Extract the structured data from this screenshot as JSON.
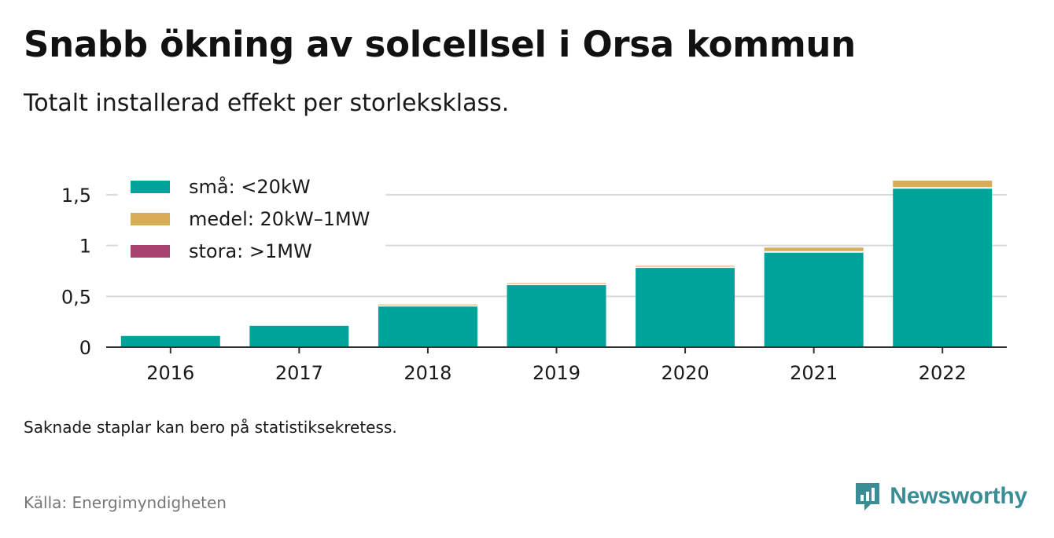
{
  "header": {
    "title": "Snabb ökning av solcellsel i Orsa kommun",
    "subtitle": "Totalt installerad effekt per storleksklass."
  },
  "footer": {
    "note": "Saknade staplar kan bero på statistiksekretess.",
    "source": "Källa: Energimyndigheten",
    "brand": "Newsworthy"
  },
  "colors": {
    "small": "#00a39a",
    "medium": "#d9ac58",
    "large": "#a8426f",
    "brand": "#3a8d94",
    "axis": "#333333",
    "grid": "#d9d9d9"
  },
  "chart_data": {
    "type": "bar",
    "stacked": true,
    "categories": [
      "2016",
      "2017",
      "2018",
      "2019",
      "2020",
      "2021",
      "2022"
    ],
    "series": [
      {
        "name": "små: <20kW",
        "values": [
          0.11,
          0.21,
          0.4,
          0.61,
          0.78,
          0.93,
          1.56
        ]
      },
      {
        "name": "medel: 20kW–1MW",
        "values": [
          0.0,
          0.0,
          0.02,
          0.02,
          0.02,
          0.05,
          0.08
        ]
      },
      {
        "name": "stora: >1MW",
        "values": [
          0,
          0,
          0,
          0,
          0,
          0,
          0
        ]
      }
    ],
    "yticks": [
      0,
      0.5,
      1,
      1.5
    ],
    "ytick_labels": [
      "0",
      "0,5",
      "1",
      "1,5"
    ],
    "ylim": [
      0,
      1.5
    ],
    "grid": true,
    "legend_position": "top-left"
  }
}
